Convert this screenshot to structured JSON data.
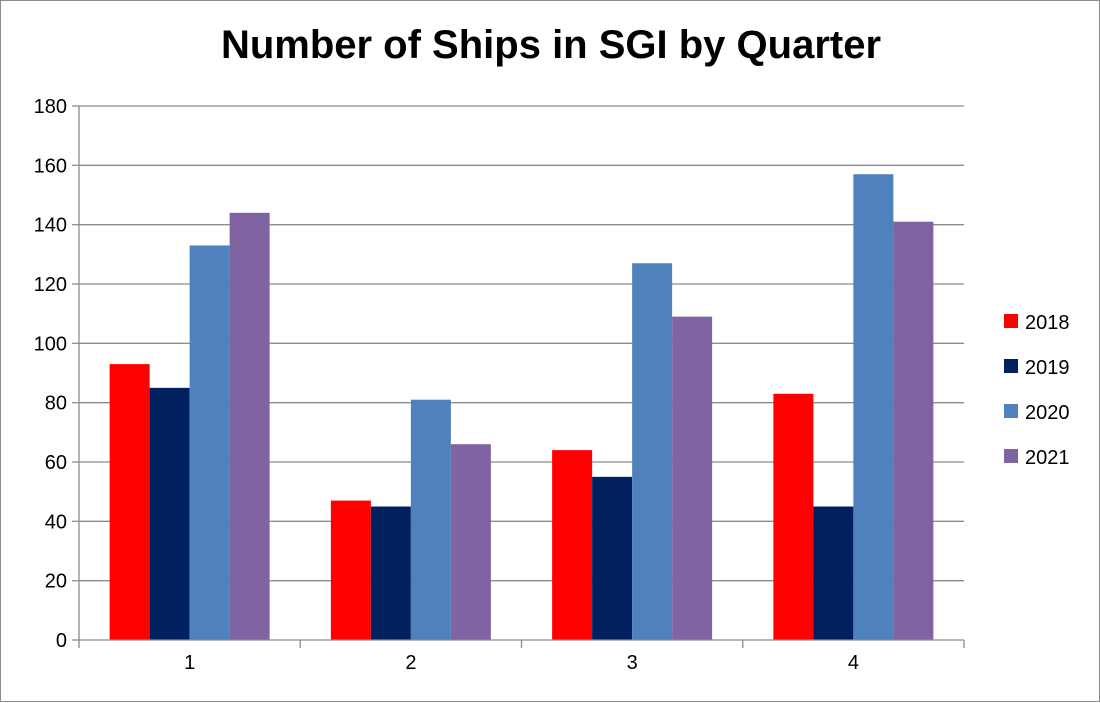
{
  "chart_data": {
    "type": "bar",
    "title": "Number of Ships in SGI by Quarter",
    "xlabel": "",
    "ylabel": "",
    "categories": [
      "1",
      "2",
      "3",
      "4"
    ],
    "series": [
      {
        "name": "2018",
        "color": "#ff0000",
        "values": [
          93,
          47,
          64,
          83
        ]
      },
      {
        "name": "2019",
        "color": "#002060",
        "values": [
          85,
          45,
          55,
          45
        ]
      },
      {
        "name": "2020",
        "color": "#4f81bd",
        "values": [
          133,
          81,
          127,
          157
        ]
      },
      {
        "name": "2021",
        "color": "#8064a2",
        "values": [
          144,
          66,
          109,
          141
        ]
      }
    ],
    "ylim": [
      0,
      180
    ],
    "yticks": [
      0,
      20,
      40,
      60,
      80,
      100,
      120,
      140,
      160,
      180
    ],
    "grid": true,
    "legend_position": "right"
  }
}
